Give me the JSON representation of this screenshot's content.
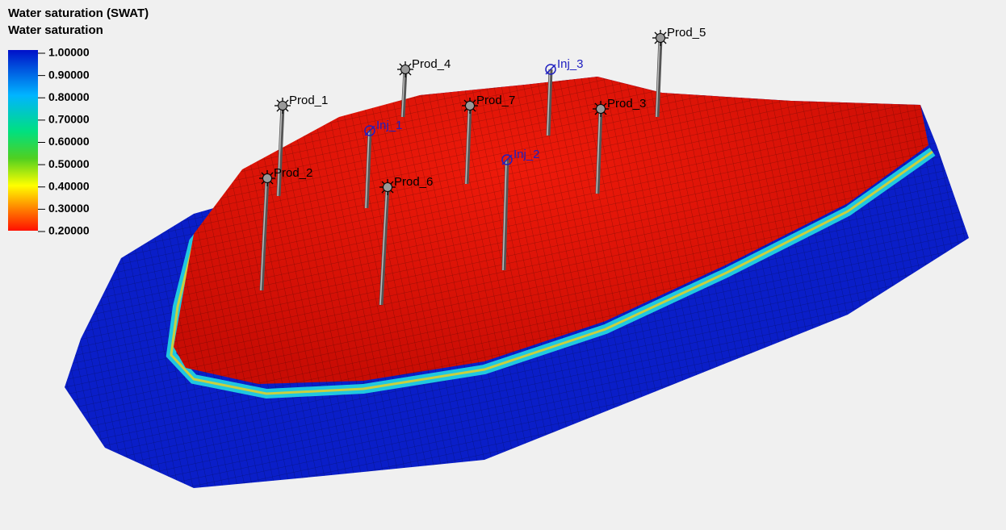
{
  "legend": {
    "title": "Water saturation (SWAT)",
    "subtitle": "Water saturation",
    "ticks": [
      "1.00000",
      "0.90000",
      "0.80000",
      "0.70000",
      "0.60000",
      "0.50000",
      "0.40000",
      "0.30000",
      "0.20000"
    ]
  },
  "wells": [
    {
      "label": "Prod_1"
    },
    {
      "label": "Prod_2"
    },
    {
      "label": "Prod_4"
    },
    {
      "label": "Inj_3"
    },
    {
      "label": "Prod_5"
    },
    {
      "label": "Prod_7"
    },
    {
      "label": "Prod_3"
    },
    {
      "label": "Inj_1"
    },
    {
      "label": "Inj_2"
    },
    {
      "label": "Prod_6"
    }
  ]
}
